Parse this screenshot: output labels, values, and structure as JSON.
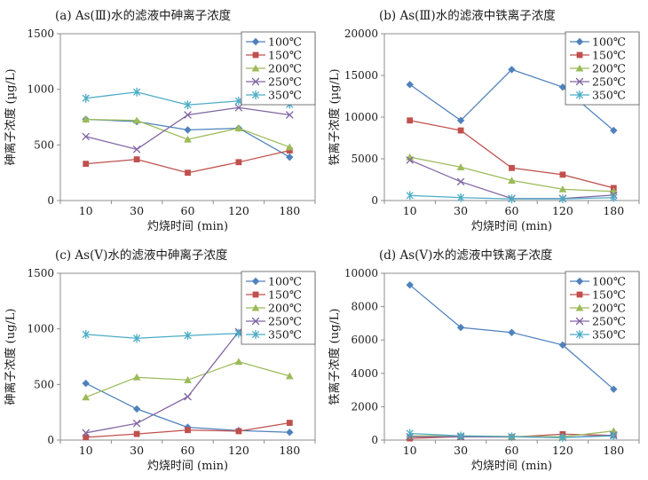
{
  "figure": {
    "background": "#ffffff",
    "axis_color": "#8c8c8c",
    "text_color": "#1a1a1a",
    "legend_border_color": "#555555",
    "legend_position": "top-right"
  },
  "series_styles": [
    {
      "label": "100℃",
      "color": "#4F81BD",
      "marker": "diamond"
    },
    {
      "label": "150℃",
      "color": "#C0504D",
      "marker": "square"
    },
    {
      "label": "200℃",
      "color": "#9BBB59",
      "marker": "triangle"
    },
    {
      "label": "250℃",
      "color": "#8064A2",
      "marker": "x"
    },
    {
      "label": "350℃",
      "color": "#4BACC6",
      "marker": "asterisk"
    }
  ],
  "chart_data": [
    {
      "id": "a",
      "type": "line",
      "title": "(a)  As(Ⅲ)水的滤液中砷离子浓度",
      "xlabel": "灼烧时间 (min)",
      "ylabel": "砷离子浓度 (µg/L)",
      "ylim": [
        0,
        1500
      ],
      "yticks": [
        0,
        500,
        1000,
        1500
      ],
      "categories": [
        "10",
        "30",
        "60",
        "120",
        "180"
      ],
      "grid": false,
      "legend_position": "top-right",
      "series": [
        {
          "name": "100℃",
          "values": [
            730,
            710,
            635,
            650,
            390
          ]
        },
        {
          "name": "150℃",
          "values": [
            330,
            370,
            250,
            345,
            450
          ]
        },
        {
          "name": "200℃",
          "values": [
            730,
            720,
            550,
            650,
            480
          ]
        },
        {
          "name": "250℃",
          "values": [
            575,
            460,
            770,
            835,
            770
          ]
        },
        {
          "name": "350℃",
          "values": [
            920,
            975,
            860,
            895,
            865
          ]
        }
      ]
    },
    {
      "id": "b",
      "type": "line",
      "title": "(b)  As(Ⅲ)水的滤液中铁离子浓度",
      "xlabel": "灼烧时间 (min)",
      "ylabel": "铁离子浓度 (µg/L)",
      "ylim": [
        0,
        20000
      ],
      "yticks": [
        0,
        5000,
        10000,
        15000,
        20000
      ],
      "categories": [
        "10",
        "30",
        "60",
        "120",
        "180"
      ],
      "grid": false,
      "legend_position": "top-right",
      "series": [
        {
          "name": "100℃",
          "values": [
            13900,
            9600,
            15700,
            13600,
            8400
          ]
        },
        {
          "name": "150℃",
          "values": [
            9600,
            8400,
            3900,
            3100,
            1500
          ]
        },
        {
          "name": "200℃",
          "values": [
            5200,
            4000,
            2400,
            1350,
            1100
          ]
        },
        {
          "name": "250℃",
          "values": [
            4850,
            2250,
            250,
            250,
            650
          ]
        },
        {
          "name": "350℃",
          "values": [
            600,
            350,
            200,
            200,
            350
          ]
        }
      ]
    },
    {
      "id": "c",
      "type": "line",
      "title": "(c)  As(Ⅴ)水的滤液中砷离子浓度",
      "xlabel": "灼烧时间 (min)",
      "ylabel": "砷离子浓度 (ug/L)",
      "ylim": [
        0,
        1500
      ],
      "yticks": [
        0,
        500,
        1000,
        1500
      ],
      "categories": [
        "10",
        "30",
        "60",
        "120",
        "180"
      ],
      "grid": false,
      "legend_position": "top-right",
      "series": [
        {
          "name": "100℃",
          "values": [
            510,
            280,
            115,
            85,
            70
          ]
        },
        {
          "name": "150℃",
          "values": [
            25,
            55,
            90,
            80,
            155
          ]
        },
        {
          "name": "200℃",
          "values": [
            385,
            565,
            540,
            705,
            575
          ]
        },
        {
          "name": "250℃",
          "values": [
            65,
            150,
            390,
            975,
            930
          ]
        },
        {
          "name": "350℃",
          "values": [
            950,
            915,
            940,
            960,
            920
          ]
        }
      ]
    },
    {
      "id": "d",
      "type": "line",
      "title": "(d)  As(Ⅴ)水的滤液中铁离子浓度",
      "xlabel": "灼烧时间 (min)",
      "ylabel": "铁离子浓度 (ug/L)",
      "ylim": [
        0,
        10000
      ],
      "yticks": [
        0,
        2000,
        4000,
        6000,
        8000,
        10000
      ],
      "categories": [
        "10",
        "30",
        "60",
        "120",
        "180"
      ],
      "grid": false,
      "legend_position": "top-right",
      "series": [
        {
          "name": "100℃",
          "values": [
            9300,
            6750,
            6450,
            5700,
            3050
          ]
        },
        {
          "name": "150℃",
          "values": [
            100,
            200,
            180,
            350,
            280
          ]
        },
        {
          "name": "200℃",
          "values": [
            250,
            250,
            220,
            200,
            550
          ]
        },
        {
          "name": "250℃",
          "values": [
            200,
            200,
            200,
            150,
            300
          ]
        },
        {
          "name": "350℃",
          "values": [
            400,
            250,
            200,
            150,
            250
          ]
        }
      ]
    }
  ]
}
